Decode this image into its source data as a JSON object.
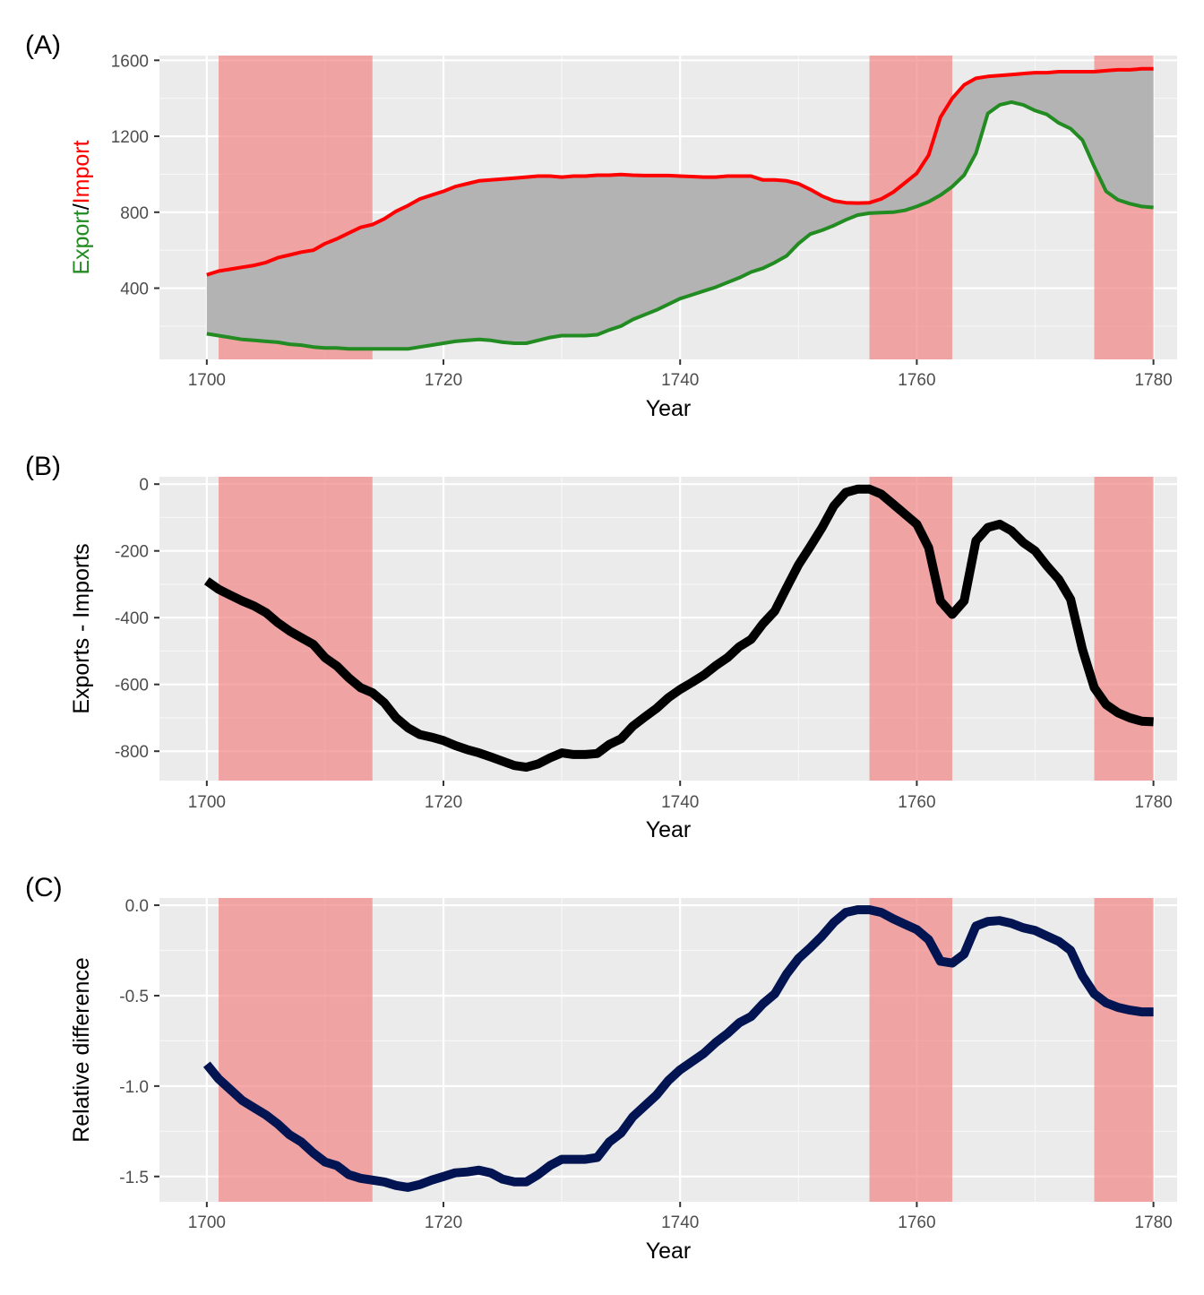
{
  "chart_data": [
    {
      "panel_label": "(A)",
      "type": "line",
      "xlabel": "Year",
      "ylabel_parts": [
        {
          "text": "Export",
          "color": "#228B22"
        },
        {
          "text": "/",
          "color": "#000000"
        },
        {
          "text": "Import",
          "color": "#FF0000"
        }
      ],
      "xlim": [
        1696,
        1782
      ],
      "ylim": [
        25,
        1625
      ],
      "xticks": [
        1700,
        1720,
        1740,
        1760,
        1780
      ],
      "yticks": [
        400,
        800,
        1200,
        1600
      ],
      "ytick_labels": [
        "400",
        "800",
        "1200",
        "1600"
      ],
      "shaded_periods": [
        [
          1701,
          1714
        ],
        [
          1756,
          1763
        ],
        [
          1775,
          1780
        ]
      ],
      "shade_color": "#F08080",
      "ribbon_color": "#B3B3B3",
      "grid": true,
      "series": [
        {
          "color": "#FF0000",
          "role": "import",
          "x": [
            1700,
            1701,
            1702,
            1703,
            1704,
            1705,
            1706,
            1707,
            1708,
            1709,
            1710,
            1711,
            1712,
            1713,
            1714,
            1715,
            1716,
            1717,
            1718,
            1719,
            1720,
            1721,
            1722,
            1723,
            1724,
            1725,
            1726,
            1727,
            1728,
            1729,
            1730,
            1731,
            1732,
            1733,
            1734,
            1735,
            1736,
            1737,
            1738,
            1739,
            1740,
            1741,
            1742,
            1743,
            1744,
            1745,
            1746,
            1747,
            1748,
            1749,
            1750,
            1751,
            1752,
            1753,
            1754,
            1755,
            1756,
            1757,
            1758,
            1759,
            1760,
            1761,
            1762,
            1763,
            1764,
            1765,
            1766,
            1767,
            1768,
            1769,
            1770,
            1771,
            1772,
            1773,
            1774,
            1775,
            1776,
            1777,
            1778,
            1779,
            1780
          ],
          "y": [
            470,
            490,
            500,
            510,
            520,
            535,
            560,
            575,
            590,
            600,
            635,
            660,
            690,
            720,
            735,
            765,
            805,
            835,
            870,
            890,
            910,
            935,
            950,
            965,
            970,
            975,
            980,
            985,
            990,
            990,
            985,
            990,
            990,
            995,
            995,
            998,
            995,
            993,
            993,
            993,
            990,
            988,
            985,
            985,
            990,
            990,
            990,
            970,
            970,
            965,
            950,
            920,
            885,
            860,
            850,
            848,
            850,
            870,
            905,
            955,
            1005,
            1100,
            1300,
            1400,
            1470,
            1505,
            1515,
            1520,
            1525,
            1530,
            1535,
            1535,
            1540,
            1540,
            1540,
            1540,
            1545,
            1550,
            1550,
            1555,
            1555
          ]
        },
        {
          "color": "#228B22",
          "role": "export",
          "x": [
            1700,
            1701,
            1702,
            1703,
            1704,
            1705,
            1706,
            1707,
            1708,
            1709,
            1710,
            1711,
            1712,
            1713,
            1714,
            1715,
            1716,
            1717,
            1718,
            1719,
            1720,
            1721,
            1722,
            1723,
            1724,
            1725,
            1726,
            1727,
            1728,
            1729,
            1730,
            1731,
            1732,
            1733,
            1734,
            1735,
            1736,
            1737,
            1738,
            1739,
            1740,
            1741,
            1742,
            1743,
            1744,
            1745,
            1746,
            1747,
            1748,
            1749,
            1750,
            1751,
            1752,
            1753,
            1754,
            1755,
            1756,
            1757,
            1758,
            1759,
            1760,
            1761,
            1762,
            1763,
            1764,
            1765,
            1766,
            1767,
            1768,
            1769,
            1770,
            1771,
            1772,
            1773,
            1774,
            1775,
            1776,
            1777,
            1778,
            1779,
            1780
          ],
          "y": [
            160,
            150,
            140,
            130,
            125,
            120,
            115,
            105,
            100,
            90,
            85,
            85,
            80,
            80,
            80,
            80,
            80,
            80,
            90,
            100,
            110,
            120,
            125,
            130,
            125,
            115,
            110,
            110,
            125,
            140,
            150,
            150,
            150,
            155,
            180,
            200,
            235,
            260,
            285,
            315,
            345,
            365,
            385,
            405,
            430,
            455,
            485,
            505,
            535,
            570,
            635,
            685,
            705,
            730,
            760,
            785,
            795,
            798,
            800,
            810,
            830,
            855,
            890,
            935,
            995,
            1110,
            1320,
            1365,
            1380,
            1365,
            1335,
            1315,
            1270,
            1240,
            1180,
            1040,
            910,
            865,
            845,
            830,
            825
          ]
        }
      ]
    },
    {
      "panel_label": "(B)",
      "type": "line",
      "xlabel": "Year",
      "ylabel": "Exports - Imports",
      "xlim": [
        1696,
        1782
      ],
      "ylim": [
        -888,
        22
      ],
      "xticks": [
        1700,
        1720,
        1740,
        1760,
        1780
      ],
      "yticks": [
        -800,
        -600,
        -400,
        -200,
        0
      ],
      "ytick_labels": [
        "-800",
        "-600",
        "-400",
        "-200",
        "0"
      ],
      "shaded_periods": [
        [
          1701,
          1714
        ],
        [
          1756,
          1763
        ],
        [
          1775,
          1780
        ]
      ],
      "shade_color": "#F08080",
      "grid": true,
      "series": [
        {
          "color": "#000000",
          "x": [
            1700,
            1701,
            1702,
            1703,
            1704,
            1705,
            1706,
            1707,
            1708,
            1709,
            1710,
            1711,
            1712,
            1713,
            1714,
            1715,
            1716,
            1717,
            1718,
            1719,
            1720,
            1721,
            1722,
            1723,
            1724,
            1725,
            1726,
            1727,
            1728,
            1729,
            1730,
            1731,
            1732,
            1733,
            1734,
            1735,
            1736,
            1737,
            1738,
            1739,
            1740,
            1741,
            1742,
            1743,
            1744,
            1745,
            1746,
            1747,
            1748,
            1749,
            1750,
            1751,
            1752,
            1753,
            1754,
            1755,
            1756,
            1757,
            1758,
            1759,
            1760,
            1761,
            1762,
            1763,
            1764,
            1765,
            1766,
            1767,
            1768,
            1769,
            1770,
            1771,
            1772,
            1773,
            1774,
            1775,
            1776,
            1777,
            1778,
            1779,
            1780
          ],
          "y": [
            -290,
            -315,
            -333,
            -350,
            -365,
            -385,
            -415,
            -440,
            -460,
            -480,
            -520,
            -545,
            -580,
            -610,
            -625,
            -655,
            -700,
            -730,
            -750,
            -758,
            -768,
            -783,
            -795,
            -805,
            -817,
            -830,
            -843,
            -848,
            -838,
            -820,
            -805,
            -810,
            -810,
            -807,
            -780,
            -763,
            -725,
            -698,
            -672,
            -640,
            -615,
            -594,
            -572,
            -544,
            -520,
            -487,
            -465,
            -418,
            -380,
            -310,
            -242,
            -187,
            -130,
            -65,
            -25,
            -15,
            -15,
            -30,
            -60,
            -90,
            -120,
            -190,
            -350,
            -390,
            -350,
            -170,
            -130,
            -120,
            -140,
            -175,
            -200,
            -245,
            -285,
            -345,
            -495,
            -610,
            -660,
            -685,
            -700,
            -710,
            -712
          ]
        }
      ]
    },
    {
      "panel_label": "(C)",
      "type": "line",
      "xlabel": "Year",
      "ylabel": "Relative difference",
      "xlim": [
        1696,
        1782
      ],
      "ylim": [
        -1.64,
        0.04
      ],
      "xticks": [
        1700,
        1720,
        1740,
        1760,
        1780
      ],
      "yticks": [
        -1.5,
        -1.0,
        -0.5,
        0.0
      ],
      "ytick_labels": [
        "-1.5",
        "-1.0",
        "-0.5",
        "0.0"
      ],
      "shaded_periods": [
        [
          1701,
          1714
        ],
        [
          1756,
          1763
        ],
        [
          1775,
          1780
        ]
      ],
      "shade_color": "#F08080",
      "grid": true,
      "series": [
        {
          "color": "#021452",
          "x": [
            1700,
            1701,
            1702,
            1703,
            1704,
            1705,
            1706,
            1707,
            1708,
            1709,
            1710,
            1711,
            1712,
            1713,
            1714,
            1715,
            1716,
            1717,
            1718,
            1719,
            1720,
            1721,
            1722,
            1723,
            1724,
            1725,
            1726,
            1727,
            1728,
            1729,
            1730,
            1731,
            1732,
            1733,
            1734,
            1735,
            1736,
            1737,
            1738,
            1739,
            1740,
            1741,
            1742,
            1743,
            1744,
            1745,
            1746,
            1747,
            1748,
            1749,
            1750,
            1751,
            1752,
            1753,
            1754,
            1755,
            1756,
            1757,
            1758,
            1759,
            1760,
            1761,
            1762,
            1763,
            1764,
            1765,
            1766,
            1767,
            1768,
            1769,
            1770,
            1771,
            1772,
            1773,
            1774,
            1775,
            1776,
            1777,
            1778,
            1779,
            1780
          ],
          "y": [
            -0.88,
            -0.96,
            -1.02,
            -1.08,
            -1.12,
            -1.16,
            -1.21,
            -1.27,
            -1.31,
            -1.37,
            -1.42,
            -1.44,
            -1.49,
            -1.51,
            -1.52,
            -1.53,
            -1.55,
            -1.56,
            -1.545,
            -1.52,
            -1.5,
            -1.48,
            -1.475,
            -1.465,
            -1.48,
            -1.515,
            -1.53,
            -1.53,
            -1.49,
            -1.44,
            -1.405,
            -1.405,
            -1.405,
            -1.395,
            -1.31,
            -1.26,
            -1.17,
            -1.11,
            -1.05,
            -0.97,
            -0.91,
            -0.865,
            -0.82,
            -0.76,
            -0.71,
            -0.65,
            -0.615,
            -0.545,
            -0.49,
            -0.38,
            -0.295,
            -0.235,
            -0.17,
            -0.095,
            -0.04,
            -0.025,
            -0.025,
            -0.04,
            -0.075,
            -0.105,
            -0.135,
            -0.19,
            -0.31,
            -0.32,
            -0.27,
            -0.115,
            -0.09,
            -0.085,
            -0.1,
            -0.125,
            -0.14,
            -0.17,
            -0.2,
            -0.25,
            -0.39,
            -0.49,
            -0.54,
            -0.565,
            -0.58,
            -0.59,
            -0.59
          ]
        }
      ]
    }
  ]
}
